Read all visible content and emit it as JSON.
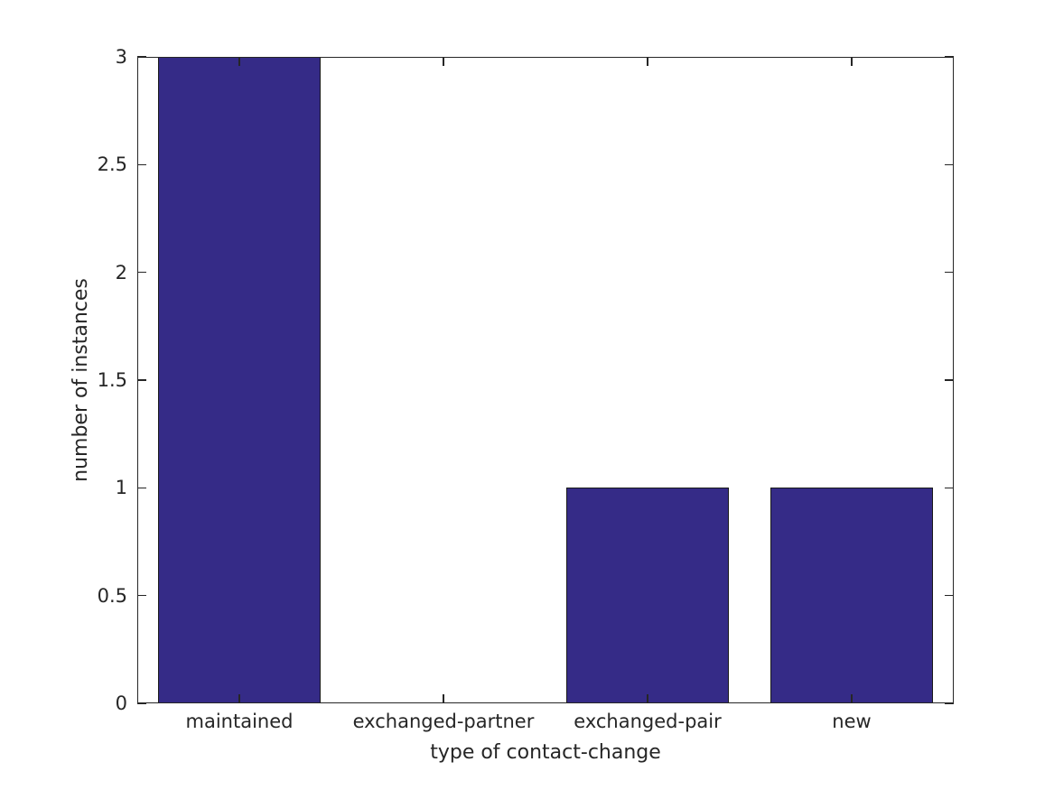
{
  "chart_data": {
    "type": "bar",
    "categories": [
      "maintained",
      "exchanged-partner",
      "exchanged-pair",
      "new"
    ],
    "values": [
      3,
      0,
      1,
      1
    ],
    "xlabel": "type of contact-change",
    "ylabel": "number of instances",
    "ylim": [
      0,
      3
    ],
    "yticks": [
      0,
      0.5,
      1,
      1.5,
      2,
      2.5,
      3
    ],
    "ytick_labels": [
      "0",
      "0.5",
      "1",
      "1.5",
      "2",
      "2.5",
      "3"
    ],
    "bar_width_fraction": 0.8,
    "bar_color": "#352b87",
    "bar_edge_color": "#1a1a1a",
    "axis_color": "#262626",
    "background_color": "#ffffff",
    "grid": false,
    "box": true,
    "tick_direction": "in",
    "legend": "none"
  }
}
